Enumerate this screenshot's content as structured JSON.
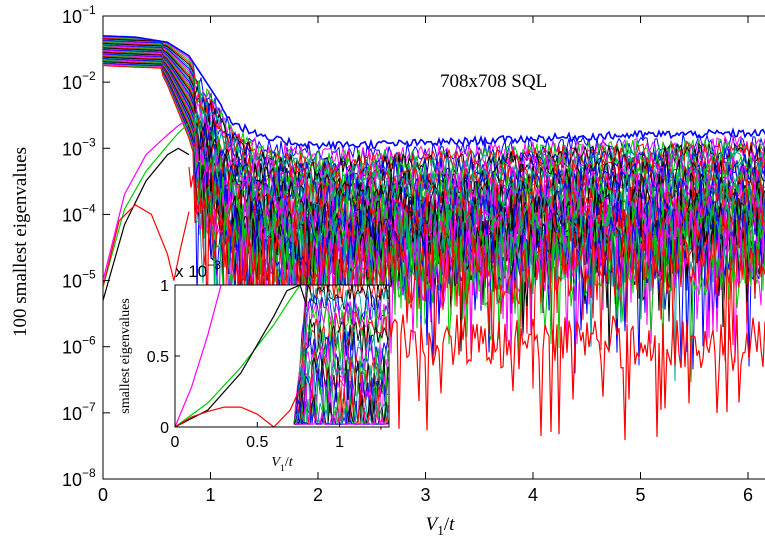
{
  "chart_data": [
    {
      "type": "line",
      "title": "",
      "annotation": "708x708 SQL",
      "xlabel": "V_1/t",
      "ylabel": "100 smallest eigenvalues",
      "xlim": [
        0,
        6.2
      ],
      "ylim": [
        1e-08,
        0.1
      ],
      "yscale": "log",
      "x_ticks": [
        "0",
        "1",
        "2",
        "3",
        "4",
        "5",
        "6"
      ],
      "y_ticks": [
        {
          "base": "10",
          "exp": "−1"
        },
        {
          "base": "10",
          "exp": "−2"
        },
        {
          "base": "10",
          "exp": "−3"
        },
        {
          "base": "10",
          "exp": "−4"
        },
        {
          "base": "10",
          "exp": "−5"
        },
        {
          "base": "10",
          "exp": "−6"
        },
        {
          "base": "10",
          "exp": "−7"
        },
        {
          "base": "10",
          "exp": "−8"
        }
      ],
      "grid": false,
      "colors": [
        "#0000ff",
        "#ff00ff",
        "#00cc00",
        "#ff0000",
        "#000000",
        "#00a0a0"
      ],
      "series": [
        {
          "color": "#0000ff",
          "envelope": "top",
          "x": [
            0,
            0.3,
            0.6,
            0.8,
            1.0,
            1.2,
            1.5,
            2.0,
            3.0,
            4.0,
            5.0,
            6.2
          ],
          "y": [
            0.05,
            0.048,
            0.04,
            0.025,
            0.008,
            0.0025,
            0.0014,
            0.0011,
            0.0012,
            0.0014,
            0.0016,
            0.0017
          ]
        },
        {
          "color": "#ff00ff",
          "x": [
            0,
            0.2,
            0.4,
            0.6,
            0.7,
            0.75
          ],
          "y": [
            1e-05,
            0.0002,
            0.0008,
            0.0016,
            0.0022,
            0.0025
          ]
        },
        {
          "color": "#00cc00",
          "x": [
            0,
            0.2,
            0.4,
            0.6,
            0.7,
            0.8
          ],
          "y": [
            8e-06,
            0.00012,
            0.00045,
            0.0011,
            0.0017,
            0.0024
          ]
        },
        {
          "color": "#000000",
          "x": [
            0,
            0.2,
            0.4,
            0.6,
            0.7,
            0.8
          ],
          "y": [
            5e-06,
            7e-05,
            0.00032,
            0.0008,
            0.001,
            0.0008
          ]
        },
        {
          "color": "#ff0000",
          "x": [
            0,
            0.15,
            0.3,
            0.45,
            0.6,
            0.66,
            0.72,
            0.8
          ],
          "y": [
            8e-06,
            8e-05,
            0.00014,
            0.0001,
            2.5e-05,
            1e-05,
            3e-05,
            0.00011
          ]
        },
        {
          "color": "#ff0000",
          "envelope": "bottom",
          "x": [
            0.8,
            1.0,
            1.5,
            2.0,
            3.0,
            4.0,
            5.0,
            6.2
          ],
          "y": [
            2e-05,
            5e-06,
            7e-07,
            2e-07,
            1e-07,
            1e-07,
            1e-07,
            1e-07
          ]
        }
      ]
    },
    {
      "type": "line",
      "title": "",
      "xlabel": "V_1/t",
      "ylabel": "smallest eigenvalues",
      "scale_label": "x 10",
      "scale_exp": "−3",
      "xlim": [
        0,
        1.3
      ],
      "ylim": [
        0,
        1
      ],
      "x_ticks": [
        "0",
        "0.5",
        "1"
      ],
      "y_ticks": [
        "0",
        "0.5",
        "1"
      ],
      "grid": false,
      "series": [
        {
          "color": "#ff00ff",
          "x": [
            0,
            0.1,
            0.2,
            0.28
          ],
          "y": [
            0,
            0.28,
            0.65,
            1.0
          ]
        },
        {
          "color": "#00cc00",
          "x": [
            0,
            0.2,
            0.4,
            0.6,
            0.7,
            0.76
          ],
          "y": [
            0,
            0.17,
            0.42,
            0.72,
            0.9,
            1.0
          ]
        },
        {
          "color": "#000000",
          "x": [
            0,
            0.2,
            0.4,
            0.6,
            0.68,
            0.76,
            0.8
          ],
          "y": [
            0,
            0.12,
            0.38,
            0.78,
            0.96,
            1.0,
            0.85
          ]
        },
        {
          "color": "#ff0000",
          "x": [
            0,
            0.1,
            0.2,
            0.3,
            0.4,
            0.5,
            0.6,
            0.7,
            0.75,
            0.8
          ],
          "y": [
            0,
            0.07,
            0.11,
            0.14,
            0.14,
            0.09,
            0.0,
            0.12,
            0.25,
            0.3
          ]
        }
      ]
    }
  ]
}
